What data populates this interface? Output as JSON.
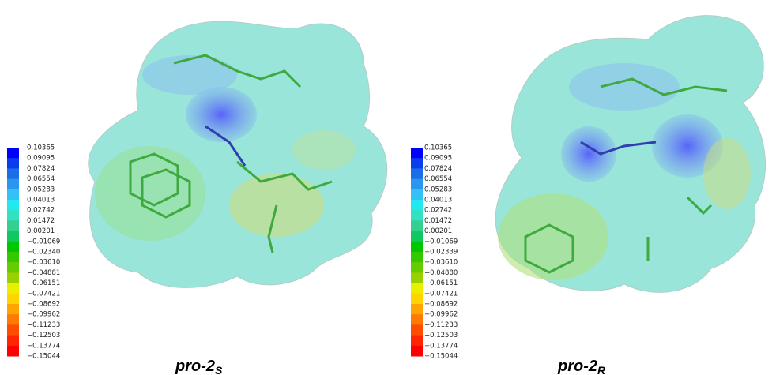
{
  "colors": [
    "#0000ff",
    "#0a3cf0",
    "#1a6fe6",
    "#2a96f0",
    "#33c2f5",
    "#22e8f0",
    "#33e0c0",
    "#33d090",
    "#10c860",
    "#00c800",
    "#33c800",
    "#66cc00",
    "#99d000",
    "#e8f000",
    "#ffd400",
    "#ffa500",
    "#ff7a00",
    "#ff4d00",
    "#ff2500",
    "#ff0000"
  ],
  "panels": [
    {
      "legend": [
        "0.10365",
        "0.09095",
        "0.07824",
        "0.06554",
        "0.05283",
        "0.04013",
        "0.02742",
        "0.01472",
        "0.00201",
        "−0.01069",
        "−0.02340",
        "−0.03610",
        "−0.04881",
        "−0.06151",
        "−0.07421",
        "−0.08692",
        "−0.09962",
        "−0.11233",
        "−0.12503",
        "−0.13774",
        "−0.15044"
      ],
      "caption": {
        "text": "pro-2",
        "subscript": "S"
      }
    },
    {
      "legend": [
        "0.10365",
        "0.09095",
        "0.07824",
        "0.06554",
        "0.05283",
        "0.04013",
        "0.02742",
        "0.01472",
        "0.00201",
        "−0.01069",
        "−0.02339",
        "−0.03610",
        "−0.04880",
        "−0.06151",
        "−0.07421",
        "−0.08692",
        "−0.09962",
        "−0.11233",
        "−0.12503",
        "−0.13774",
        "−0.15044"
      ],
      "caption": {
        "text": "pro-2",
        "subscript": "R"
      }
    }
  ]
}
